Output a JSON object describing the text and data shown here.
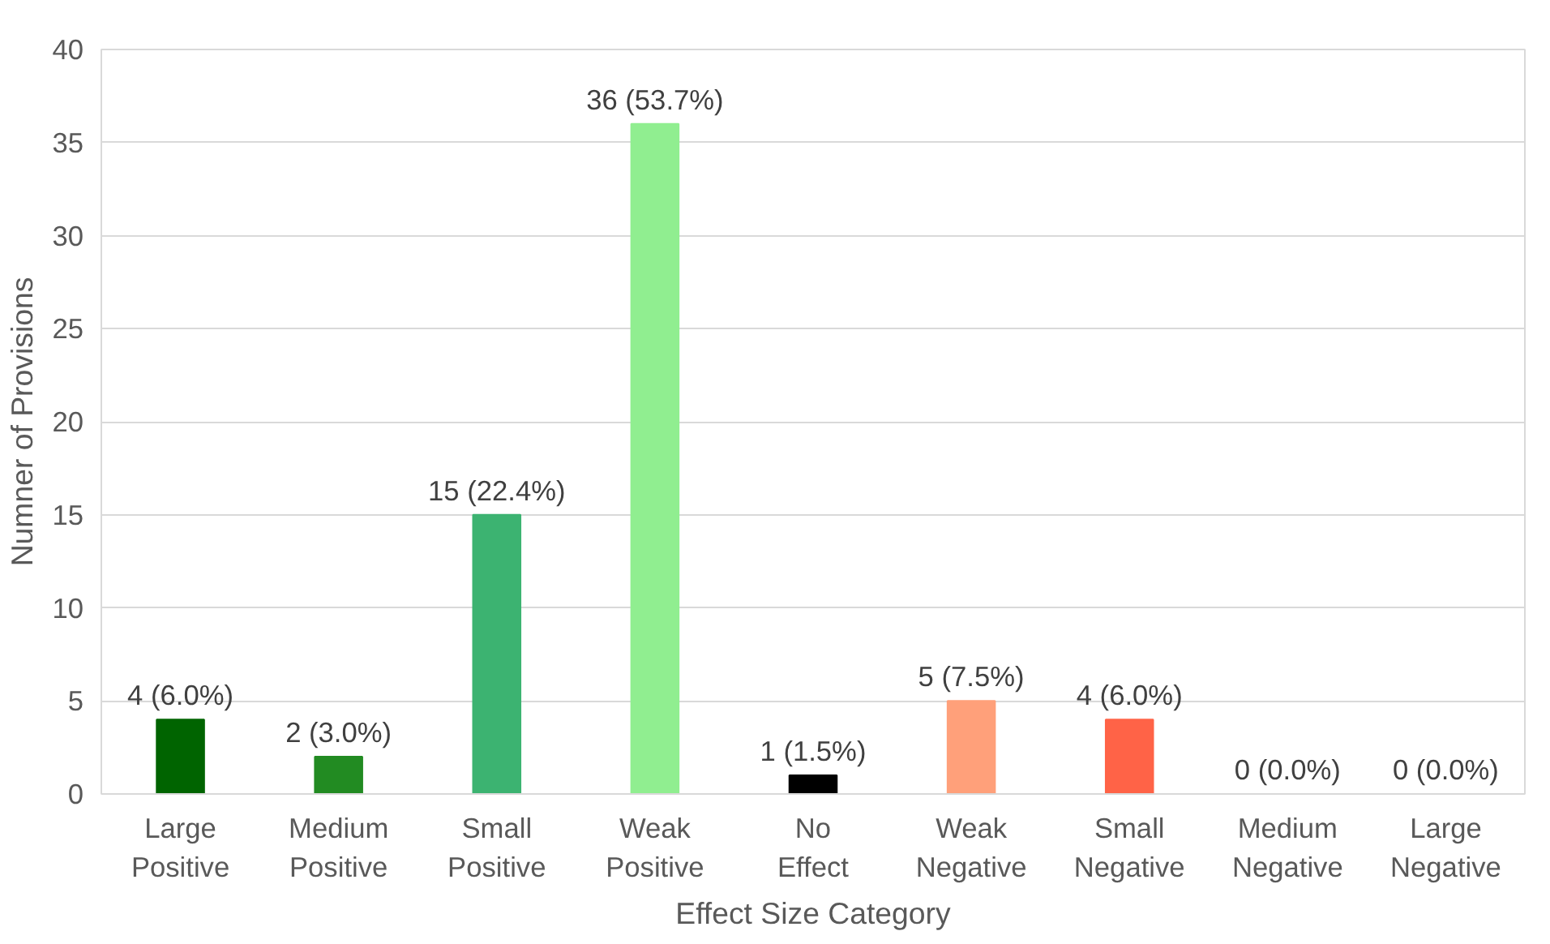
{
  "chart_data": {
    "type": "bar",
    "categories": [
      "Large Positive",
      "Medium Positive",
      "Small Positive",
      "Weak Positive",
      "No Effect",
      "Weak Negative",
      "Small Negative",
      "Medium Negative",
      "Large Negative"
    ],
    "values": [
      4,
      2,
      15,
      36,
      1,
      5,
      4,
      0,
      0
    ],
    "colors": [
      "#006400",
      "#228b22",
      "#3cb371",
      "#90ee90",
      "#000000",
      "#ffa07a",
      "#ff6347",
      "#dc143c",
      "#8b0000"
    ],
    "value_labels": [
      "4 (6.0%)",
      "2 (3.0%)",
      "15 (22.4%)",
      "36 (53.7%)",
      "1 (1.5%)",
      "5 (7.5%)",
      "4 (6.0%)",
      "0 (0.0%)",
      "0 (0.0%)"
    ],
    "xlabel": "Effect Size Category",
    "ylabel": "Numner of Provisions",
    "ylim": [
      0,
      40
    ],
    "yticks": [
      0,
      5,
      10,
      15,
      20,
      25,
      30,
      35,
      40
    ],
    "grid": "y"
  }
}
